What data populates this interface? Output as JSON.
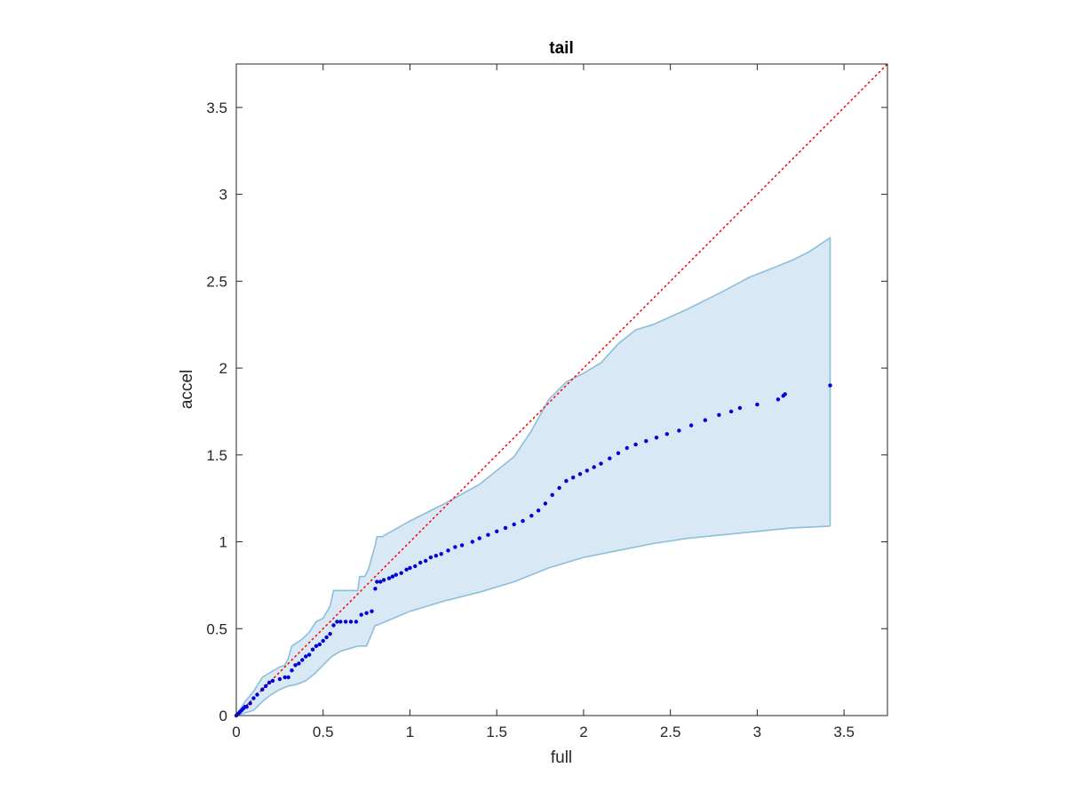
{
  "chart_data": {
    "type": "scatter",
    "title": "tail",
    "xlabel": "full",
    "ylabel": "accel",
    "xlim": [
      0,
      3.75
    ],
    "ylim": [
      0,
      3.75
    ],
    "xticks": [
      "0",
      "0.5",
      "1",
      "1.5",
      "2",
      "2.5",
      "3",
      "3.5"
    ],
    "yticks": [
      "0",
      "0.5",
      "1",
      "1.5",
      "2",
      "2.5",
      "3",
      "3.5"
    ],
    "xtick_values": [
      0,
      0.5,
      1,
      1.5,
      2,
      2.5,
      3,
      3.5
    ],
    "ytick_values": [
      0,
      0.5,
      1,
      1.5,
      2,
      2.5,
      3,
      3.5
    ],
    "grid": false,
    "legend": "none",
    "colors": {
      "points": "#0000dd",
      "band_fill": "#d8e8f4",
      "band_edge": "#8cbfdc",
      "reference_line": "#ff0000",
      "axes": "#262626"
    },
    "reference_line": {
      "style": "dotted",
      "from": [
        0,
        0
      ],
      "to": [
        3.75,
        3.75
      ]
    },
    "points": [
      [
        0.0,
        0.0
      ],
      [
        0.01,
        0.01
      ],
      [
        0.02,
        0.02
      ],
      [
        0.03,
        0.03
      ],
      [
        0.04,
        0.04
      ],
      [
        0.05,
        0.05
      ],
      [
        0.06,
        0.05
      ],
      [
        0.08,
        0.07
      ],
      [
        0.1,
        0.1
      ],
      [
        0.12,
        0.12
      ],
      [
        0.15,
        0.15
      ],
      [
        0.17,
        0.17
      ],
      [
        0.19,
        0.19
      ],
      [
        0.21,
        0.2
      ],
      [
        0.25,
        0.21
      ],
      [
        0.28,
        0.22
      ],
      [
        0.3,
        0.22
      ],
      [
        0.32,
        0.26
      ],
      [
        0.34,
        0.29
      ],
      [
        0.36,
        0.3
      ],
      [
        0.38,
        0.32
      ],
      [
        0.4,
        0.34
      ],
      [
        0.42,
        0.35
      ],
      [
        0.44,
        0.38
      ],
      [
        0.46,
        0.4
      ],
      [
        0.48,
        0.41
      ],
      [
        0.5,
        0.43
      ],
      [
        0.52,
        0.45
      ],
      [
        0.54,
        0.47
      ],
      [
        0.56,
        0.52
      ],
      [
        0.58,
        0.54
      ],
      [
        0.6,
        0.54
      ],
      [
        0.63,
        0.54
      ],
      [
        0.66,
        0.54
      ],
      [
        0.69,
        0.54
      ],
      [
        0.72,
        0.58
      ],
      [
        0.75,
        0.59
      ],
      [
        0.78,
        0.6
      ],
      [
        0.8,
        0.73
      ],
      [
        0.81,
        0.77
      ],
      [
        0.83,
        0.77
      ],
      [
        0.85,
        0.78
      ],
      [
        0.88,
        0.79
      ],
      [
        0.9,
        0.8
      ],
      [
        0.92,
        0.81
      ],
      [
        0.95,
        0.82
      ],
      [
        0.98,
        0.84
      ],
      [
        1.0,
        0.85
      ],
      [
        1.03,
        0.86
      ],
      [
        1.06,
        0.88
      ],
      [
        1.09,
        0.89
      ],
      [
        1.12,
        0.91
      ],
      [
        1.15,
        0.92
      ],
      [
        1.18,
        0.93
      ],
      [
        1.22,
        0.95
      ],
      [
        1.26,
        0.97
      ],
      [
        1.3,
        0.98
      ],
      [
        1.36,
        1.0
      ],
      [
        1.4,
        1.02
      ],
      [
        1.45,
        1.04
      ],
      [
        1.5,
        1.06
      ],
      [
        1.55,
        1.08
      ],
      [
        1.6,
        1.1
      ],
      [
        1.65,
        1.12
      ],
      [
        1.7,
        1.15
      ],
      [
        1.74,
        1.18
      ],
      [
        1.78,
        1.22
      ],
      [
        1.82,
        1.27
      ],
      [
        1.86,
        1.31
      ],
      [
        1.9,
        1.35
      ],
      [
        1.94,
        1.37
      ],
      [
        1.98,
        1.39
      ],
      [
        2.02,
        1.41
      ],
      [
        2.06,
        1.43
      ],
      [
        2.1,
        1.45
      ],
      [
        2.15,
        1.48
      ],
      [
        2.2,
        1.51
      ],
      [
        2.25,
        1.54
      ],
      [
        2.3,
        1.56
      ],
      [
        2.36,
        1.58
      ],
      [
        2.42,
        1.6
      ],
      [
        2.48,
        1.62
      ],
      [
        2.55,
        1.64
      ],
      [
        2.62,
        1.67
      ],
      [
        2.7,
        1.7
      ],
      [
        2.78,
        1.73
      ],
      [
        2.85,
        1.75
      ],
      [
        2.9,
        1.77
      ],
      [
        3.0,
        1.79
      ],
      [
        3.12,
        1.82
      ],
      [
        3.15,
        1.84
      ],
      [
        3.16,
        1.85
      ],
      [
        3.42,
        1.9
      ]
    ],
    "band_upper": [
      [
        0.0,
        0.0
      ],
      [
        0.05,
        0.08
      ],
      [
        0.1,
        0.14
      ],
      [
        0.15,
        0.22
      ],
      [
        0.2,
        0.25
      ],
      [
        0.25,
        0.28
      ],
      [
        0.28,
        0.29
      ],
      [
        0.3,
        0.33
      ],
      [
        0.32,
        0.4
      ],
      [
        0.38,
        0.44
      ],
      [
        0.42,
        0.48
      ],
      [
        0.46,
        0.54
      ],
      [
        0.5,
        0.56
      ],
      [
        0.54,
        0.63
      ],
      [
        0.56,
        0.72
      ],
      [
        0.7,
        0.72
      ],
      [
        0.71,
        0.8
      ],
      [
        0.74,
        0.8
      ],
      [
        0.76,
        0.84
      ],
      [
        0.8,
        0.98
      ],
      [
        0.81,
        1.03
      ],
      [
        0.84,
        1.03
      ],
      [
        1.0,
        1.12
      ],
      [
        1.2,
        1.22
      ],
      [
        1.4,
        1.33
      ],
      [
        1.6,
        1.49
      ],
      [
        1.7,
        1.64
      ],
      [
        1.8,
        1.82
      ],
      [
        1.9,
        1.92
      ],
      [
        2.0,
        1.97
      ],
      [
        2.1,
        2.03
      ],
      [
        2.2,
        2.14
      ],
      [
        2.3,
        2.22
      ],
      [
        2.4,
        2.25
      ],
      [
        2.6,
        2.34
      ],
      [
        2.8,
        2.44
      ],
      [
        2.95,
        2.52
      ],
      [
        3.1,
        2.58
      ],
      [
        3.2,
        2.62
      ],
      [
        3.3,
        2.67
      ],
      [
        3.42,
        2.75
      ]
    ],
    "band_lower": [
      [
        0.0,
        0.0
      ],
      [
        0.1,
        0.03
      ],
      [
        0.15,
        0.08
      ],
      [
        0.2,
        0.12
      ],
      [
        0.25,
        0.15
      ],
      [
        0.3,
        0.17
      ],
      [
        0.35,
        0.18
      ],
      [
        0.4,
        0.2
      ],
      [
        0.45,
        0.24
      ],
      [
        0.5,
        0.29
      ],
      [
        0.55,
        0.34
      ],
      [
        0.6,
        0.37
      ],
      [
        0.7,
        0.4
      ],
      [
        0.75,
        0.4
      ],
      [
        0.8,
        0.52
      ],
      [
        0.81,
        0.52
      ],
      [
        1.0,
        0.6
      ],
      [
        1.2,
        0.66
      ],
      [
        1.4,
        0.71
      ],
      [
        1.6,
        0.77
      ],
      [
        1.8,
        0.85
      ],
      [
        2.0,
        0.91
      ],
      [
        2.2,
        0.95
      ],
      [
        2.4,
        0.99
      ],
      [
        2.6,
        1.02
      ],
      [
        2.8,
        1.04
      ],
      [
        3.0,
        1.06
      ],
      [
        3.2,
        1.08
      ],
      [
        3.42,
        1.09
      ]
    ]
  }
}
